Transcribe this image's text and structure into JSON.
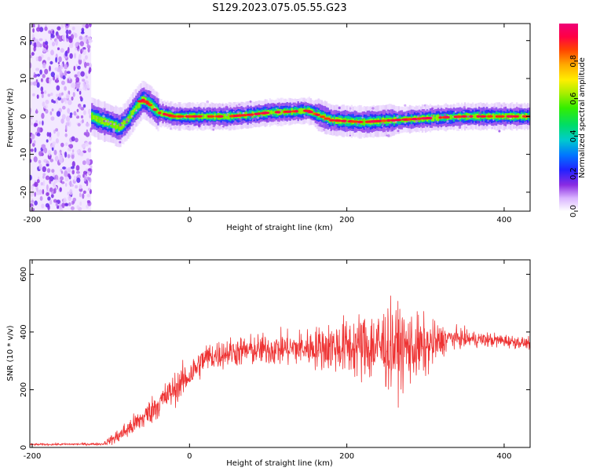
{
  "title": "S129.2023.075.05.55.G23",
  "chart_data": [
    {
      "type": "heatmap",
      "xlabel": "Height of straight line (km)",
      "ylabel": "Frequency (Hz)",
      "xlim": [
        -203,
        433
      ],
      "ylim": [
        -25,
        24.5
      ],
      "xticks": [
        -200,
        0,
        200,
        400
      ],
      "yticks": [
        -20,
        -10,
        0,
        10,
        20
      ],
      "colorbar": {
        "label": "Normalized spectral amplitude",
        "range": [
          0,
          1
        ],
        "ticks": [
          0.0,
          0.2,
          0.4,
          0.6,
          0.8
        ]
      },
      "ridge": {
        "description_points": [
          [
            -125,
            0
          ],
          [
            -115,
            -1
          ],
          [
            -100,
            -2
          ],
          [
            -90,
            -3
          ],
          [
            -80,
            -1
          ],
          [
            -70,
            2
          ],
          [
            -60,
            4.5
          ],
          [
            -50,
            3
          ],
          [
            -40,
            1
          ],
          [
            -20,
            0
          ],
          [
            0,
            0
          ],
          [
            50,
            0
          ],
          [
            80,
            0.5
          ],
          [
            100,
            1
          ],
          [
            150,
            1.5
          ],
          [
            180,
            -1
          ],
          [
            220,
            -1.5
          ],
          [
            260,
            -1
          ],
          [
            300,
            -0.5
          ],
          [
            350,
            0
          ],
          [
            433,
            0
          ]
        ]
      },
      "noise_region": {
        "x": [
          -203,
          -125
        ],
        "y": [
          -25,
          24.5
        ]
      }
    },
    {
      "type": "line",
      "xlabel": "Height of straight line (km)",
      "ylabel": "SNR (10 * v/v)",
      "xlim": [
        -203,
        433
      ],
      "ylim": [
        0,
        650
      ],
      "xticks": [
        -200,
        0,
        200,
        400
      ],
      "yticks": [
        0,
        200,
        400,
        600
      ],
      "color": "#ee3333",
      "envelope": {
        "x": [
          -203,
          -110,
          -90,
          -60,
          -40,
          -20,
          0,
          20,
          50,
          100,
          150,
          200,
          230,
          250,
          270,
          300,
          330,
          360,
          400,
          433
        ],
        "mean": [
          10,
          12,
          40,
          100,
          150,
          200,
          250,
          310,
          330,
          340,
          345,
          350,
          350,
          350,
          345,
          345,
          380,
          375,
          370,
          360
        ],
        "spread": [
          4,
          5,
          30,
          45,
          55,
          60,
          60,
          55,
          55,
          60,
          70,
          110,
          140,
          160,
          150,
          110,
          40,
          30,
          25,
          20
        ]
      }
    }
  ]
}
